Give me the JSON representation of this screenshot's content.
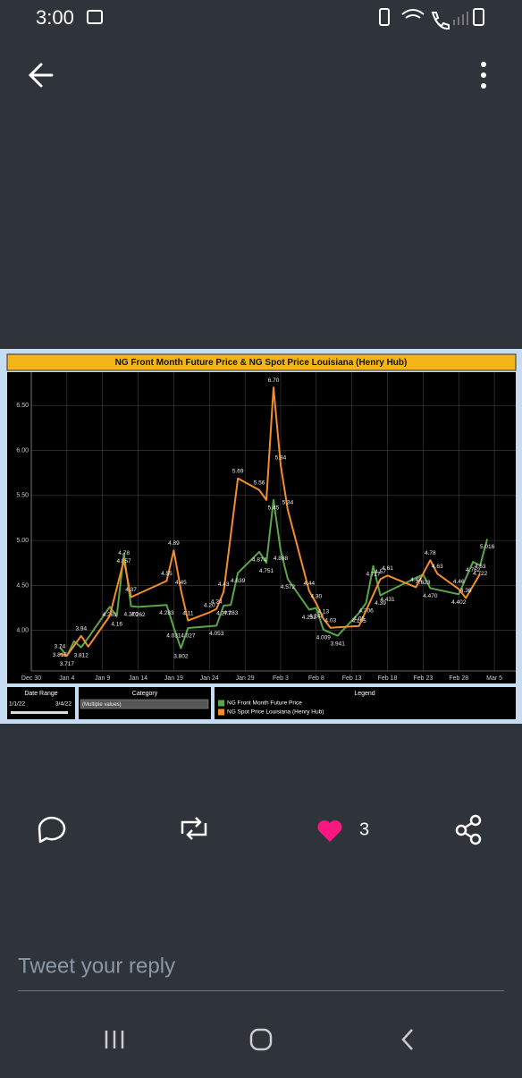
{
  "status_bar": {
    "time": "3:00"
  },
  "chart_data": {
    "type": "line",
    "title": "NG Front Month Future Price & NG Spot Price Louisiana (Henry Hub)",
    "series": [
      {
        "name": "NG Front Month Future Price",
        "color": "#5aa64a",
        "x": [
          "2022-01-03",
          "2022-01-04",
          "2022-01-05",
          "2022-01-06",
          "2022-01-07",
          "2022-01-10",
          "2022-01-11",
          "2022-01-12",
          "2022-01-13",
          "2022-01-14",
          "2022-01-18",
          "2022-01-19",
          "2022-01-20",
          "2022-01-21",
          "2022-01-25",
          "2022-01-26",
          "2022-01-27",
          "2022-01-28",
          "2022-01-31",
          "2022-02-01",
          "2022-02-02",
          "2022-02-03",
          "2022-02-04",
          "2022-02-07",
          "2022-02-08",
          "2022-02-09",
          "2022-02-11",
          "2022-02-14",
          "2022-02-15",
          "2022-02-16",
          "2022-02-17",
          "2022-02-18",
          "2022-02-23",
          "2022-02-24",
          "2022-02-28",
          "2022-03-02",
          "2022-03-03",
          "2022-03-04"
        ],
        "values": [
          3.815,
          3.717,
          3.88,
          3.812,
          3.92,
          4.261,
          4.16,
          4.857,
          4.27,
          4.262,
          4.283,
          4.031,
          3.802,
          4.027,
          4.053,
          4.277,
          4.283,
          4.639,
          4.874,
          4.751,
          5.45,
          4.888,
          4.572,
          4.232,
          4.248,
          4.009,
          3.941,
          4.195,
          4.306,
          4.717,
          4.39,
          4.431,
          4.623,
          4.47,
          4.402,
          4.762,
          4.722,
          5.016
        ],
        "value_labels": [
          "3.815",
          "3.717",
          null,
          "3.812",
          null,
          "4.261",
          "4.16",
          "4.857",
          "4.270",
          "4.262",
          "4.283",
          "4.031",
          "3.802",
          "4.027",
          "4.053",
          "4.277",
          "4.283",
          "4.639",
          "4.874",
          "4.751",
          "5.45",
          "4.888",
          "4.572",
          "4.232",
          "4.248",
          "4.009",
          "3.941",
          "4.195",
          "4.306",
          "4.717",
          "4.39",
          "4.431",
          "4.623",
          "4.470",
          "4.402",
          "4.762",
          "4.722",
          "5.016"
        ]
      },
      {
        "name": "NG Spot Price Louisiana (Henry Hub)",
        "color": "#f28e2b",
        "x": [
          "2022-01-03",
          "2022-01-04",
          "2022-01-06",
          "2022-01-07",
          "2022-01-10",
          "2022-01-12",
          "2022-01-13",
          "2022-01-18",
          "2022-01-19",
          "2022-01-20",
          "2022-01-21",
          "2022-01-24",
          "2022-01-25",
          "2022-01-26",
          "2022-01-28",
          "2022-01-31",
          "2022-02-01",
          "2022-02-02",
          "2022-02-03",
          "2022-02-04",
          "2022-02-07",
          "2022-02-08",
          "2022-02-09",
          "2022-02-10",
          "2022-02-14",
          "2022-02-17",
          "2022-02-18",
          "2022-02-22",
          "2022-02-24",
          "2022-02-25",
          "2022-02-28",
          "2022-03-01",
          "2022-03-03"
        ],
        "values": [
          3.74,
          3.72,
          3.94,
          3.82,
          4.16,
          4.78,
          4.37,
          4.55,
          4.89,
          4.45,
          4.11,
          4.2,
          4.24,
          4.43,
          5.69,
          5.56,
          5.45,
          6.7,
          5.84,
          5.34,
          4.44,
          4.3,
          4.13,
          4.03,
          4.05,
          4.57,
          4.61,
          4.48,
          4.78,
          4.63,
          4.46,
          4.36,
          4.63
        ],
        "value_labels": [
          "3.74",
          null,
          "3.94",
          null,
          null,
          "4.78",
          "4.37",
          "4.55",
          "4.89",
          "4.45",
          "4.11",
          "4.20",
          "4.24",
          "4.43",
          "5.69",
          "5.56",
          null,
          "6.70",
          "5.84",
          "5.34",
          "4.44",
          "4.30",
          "4.13",
          "4.03",
          "4.05",
          "4.57",
          "4.61",
          "4.48",
          "4.78",
          "4.63",
          "4.46",
          "4.36",
          "4.63"
        ]
      }
    ],
    "xlim": [
      "2021-12-30",
      "2022-03-08"
    ],
    "xticks": [
      {
        "value": "2021-12-30",
        "label": "Dec 30"
      },
      {
        "value": "2022-01-04",
        "label": "Jan 4"
      },
      {
        "value": "2022-01-09",
        "label": "Jan 9"
      },
      {
        "value": "2022-01-14",
        "label": "Jan 14"
      },
      {
        "value": "2022-01-19",
        "label": "Jan 19"
      },
      {
        "value": "2022-01-24",
        "label": "Jan 24"
      },
      {
        "value": "2022-01-29",
        "label": "Jan 29"
      },
      {
        "value": "2022-02-03",
        "label": "Feb 3"
      },
      {
        "value": "2022-02-08",
        "label": "Feb 8"
      },
      {
        "value": "2022-02-13",
        "label": "Feb 13"
      },
      {
        "value": "2022-02-18",
        "label": "Feb 18"
      },
      {
        "value": "2022-02-23",
        "label": "Feb 23"
      },
      {
        "value": "2022-02-28",
        "label": "Feb 28"
      },
      {
        "value": "2022-03-05",
        "label": "Mar 5"
      }
    ],
    "ylim": [
      3.55,
      6.87
    ],
    "yticks": [
      {
        "value": 4,
        "label": "4.00"
      },
      {
        "value": 4.5,
        "label": "4.50"
      },
      {
        "value": 5,
        "label": "5.00"
      },
      {
        "value": 5.5,
        "label": "5.50"
      },
      {
        "value": 6,
        "label": "6.00"
      },
      {
        "value": 6.5,
        "label": "6.50"
      }
    ],
    "grid": true,
    "filters": {
      "date_range": {
        "title": "Date Range",
        "start": "1/1/22",
        "end": "3/4/22"
      },
      "category": {
        "title": "Category",
        "selection": "(Multiple values)"
      },
      "legend_title": "Legend"
    }
  },
  "actions": {
    "likes": 3
  },
  "reply_placeholder": "Tweet your reply"
}
